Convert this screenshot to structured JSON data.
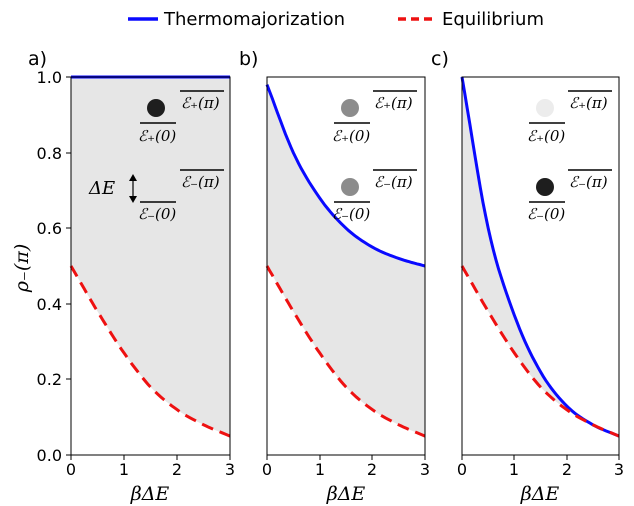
{
  "legend": {
    "thermo_label": "Thermomajorization",
    "equilibrium_label": "Equilibrium",
    "thermo_color": "#0a0aff",
    "equilibrium_color": "#ee1111"
  },
  "axes": {
    "ylabel": "ρ₋(π)",
    "xlabel": "βΔE",
    "ylim": [
      0,
      1
    ],
    "xlim": [
      0,
      3
    ],
    "y_ticks": [
      "0.0",
      "0.2",
      "0.4",
      "0.6",
      "0.8",
      "1.0"
    ],
    "x_ticks": [
      "0",
      "1",
      "2",
      "3"
    ]
  },
  "panels": [
    {
      "label": "a)",
      "annotations": {
        "delta_e": "ΔE",
        "upper_top": "ℰ₊(π)",
        "upper_bottom": "ℰ₊(0)",
        "lower_top": "ℰ₋(π)",
        "lower_bottom": "ℰ₋(0)",
        "upper_dot_color": "#1e1e1e",
        "lower_dot_color": "none"
      }
    },
    {
      "label": "b)",
      "annotations": {
        "upper_top": "ℰ₊(π)",
        "upper_bottom": "ℰ₊(0)",
        "lower_top": "ℰ₋(π)",
        "lower_bottom": "ℰ₋(0)",
        "upper_dot_color": "#8c8c8c",
        "lower_dot_color": "#8c8c8c"
      }
    },
    {
      "label": "c)",
      "annotations": {
        "upper_top": "ℰ₊(π)",
        "upper_bottom": "ℰ₊(0)",
        "lower_top": "ℰ₋(π)",
        "lower_bottom": "ℰ₋(0)",
        "upper_dot_color": "#ececec",
        "lower_dot_color": "#1e1e1e"
      }
    }
  ],
  "chart_data": [
    {
      "type": "line",
      "panel": "a)",
      "xlabel": "βΔE",
      "ylabel": "ρ₋(π)",
      "xlim": [
        0,
        3
      ],
      "ylim": [
        0,
        1
      ],
      "shaded_region": "between Equilibrium and Thermomajorization",
      "series": [
        {
          "name": "Thermomajorization",
          "x": [
            0,
            0.5,
            1,
            1.5,
            2,
            2.5,
            3
          ],
          "y": [
            1.0,
            1.0,
            1.0,
            1.0,
            1.0,
            1.0,
            1.0
          ]
        },
        {
          "name": "Equilibrium",
          "x": [
            0,
            0.5,
            1,
            1.5,
            2,
            2.5,
            3
          ],
          "y": [
            0.5,
            0.38,
            0.27,
            0.18,
            0.12,
            0.08,
            0.05
          ]
        }
      ]
    },
    {
      "type": "line",
      "panel": "b)",
      "xlabel": "βΔE",
      "xlim": [
        0,
        3
      ],
      "ylim": [
        0,
        1
      ],
      "shaded_region": "between Equilibrium and Thermomajorization",
      "series": [
        {
          "name": "Thermomajorization",
          "x": [
            0,
            0.5,
            1,
            1.5,
            2,
            2.5,
            3
          ],
          "y": [
            0.98,
            0.8,
            0.68,
            0.6,
            0.55,
            0.52,
            0.5
          ]
        },
        {
          "name": "Equilibrium",
          "x": [
            0,
            0.5,
            1,
            1.5,
            2,
            2.5,
            3
          ],
          "y": [
            0.5,
            0.38,
            0.27,
            0.18,
            0.12,
            0.08,
            0.05
          ]
        }
      ]
    },
    {
      "type": "line",
      "panel": "c)",
      "xlabel": "βΔE",
      "xlim": [
        0,
        3
      ],
      "ylim": [
        0,
        1
      ],
      "shaded_region": "between Equilibrium and Thermomajorization",
      "series": [
        {
          "name": "Thermomajorization",
          "x": [
            0,
            0.5,
            1,
            1.5,
            2,
            2.5,
            3
          ],
          "y": [
            1.0,
            0.6,
            0.37,
            0.22,
            0.13,
            0.08,
            0.05
          ]
        },
        {
          "name": "Equilibrium",
          "x": [
            0,
            0.5,
            1,
            1.5,
            2,
            2.5,
            3
          ],
          "y": [
            0.5,
            0.38,
            0.27,
            0.18,
            0.12,
            0.08,
            0.05
          ]
        }
      ]
    }
  ]
}
